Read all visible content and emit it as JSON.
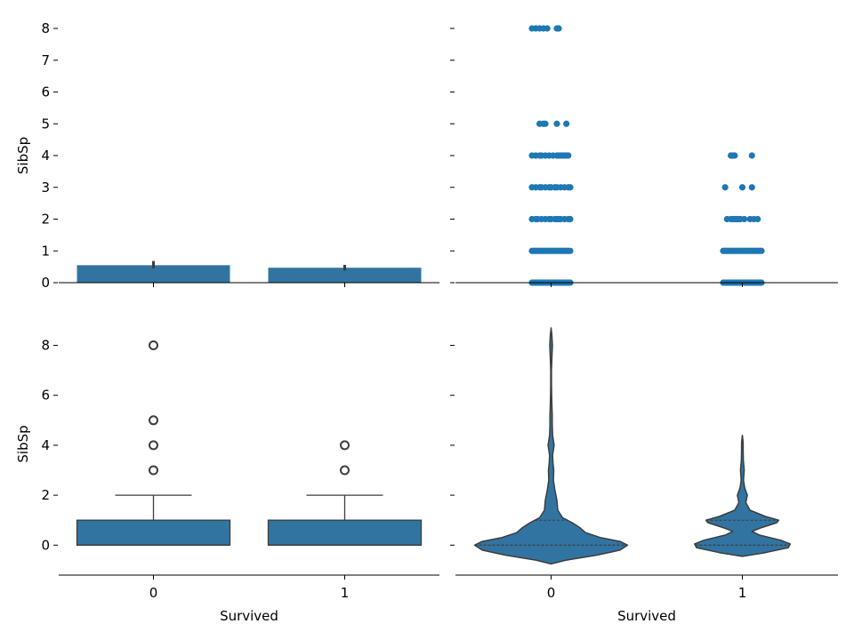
{
  "theme": {
    "fill": "#3274a1",
    "strip": "#1f77b4",
    "edge": "#3d3d3d",
    "outlier": "#3d3d3d",
    "axis": "#000000"
  },
  "chart_data": [
    {
      "type": "bar",
      "title": "",
      "xlabel": "",
      "ylabel": "SibSp",
      "categories": [
        "0",
        "1"
      ],
      "values": [
        0.55,
        0.47
      ],
      "ci": [
        [
          0.45,
          0.68
        ],
        [
          0.38,
          0.56
        ]
      ],
      "ylim": [
        0,
        8
      ],
      "yticks": [
        0,
        1,
        2,
        3,
        4,
        5,
        6,
        7,
        8
      ],
      "grid": false
    },
    {
      "type": "scatter",
      "subtype": "strip",
      "title": "",
      "xlabel": "",
      "ylabel": "",
      "categories": [
        "0",
        "1"
      ],
      "series": [
        {
          "points": [
            {
              "y": 8,
              "offsets": [
                -0.1,
                -0.08,
                -0.06,
                -0.04,
                -0.02,
                0.03,
                0.04
              ]
            },
            {
              "y": 5,
              "offsets": [
                -0.06,
                -0.04,
                -0.03,
                0.03,
                0.08
              ]
            },
            {
              "y": 4,
              "offsets": [
                -0.1,
                -0.08,
                -0.06,
                -0.05,
                -0.03,
                -0.01,
                0.01,
                0.03,
                0.04,
                0.05,
                0.06,
                0.07,
                0.08,
                0.09
              ]
            },
            {
              "y": 3,
              "offsets": [
                -0.1,
                -0.08,
                -0.06,
                -0.05,
                -0.03,
                -0.01,
                0.0,
                0.02,
                0.03,
                0.05,
                0.07,
                0.09,
                0.1
              ]
            },
            {
              "y": 2,
              "offsets": [
                -0.1,
                -0.08,
                -0.07,
                -0.05,
                -0.03,
                -0.01,
                0.0,
                0.02,
                0.03,
                0.04,
                0.05,
                0.07,
                0.09,
                0.1
              ]
            },
            {
              "y": 1,
              "offsets": [
                -0.1,
                -0.09,
                -0.08,
                -0.07,
                -0.06,
                -0.05,
                -0.04,
                -0.03,
                -0.02,
                -0.01,
                0.0,
                0.01,
                0.02,
                0.03,
                0.04,
                0.05,
                0.06,
                0.07,
                0.08,
                0.09,
                0.1
              ]
            },
            {
              "y": 0,
              "offsets": [
                -0.1,
                -0.09,
                -0.08,
                -0.07,
                -0.06,
                -0.05,
                -0.04,
                -0.03,
                -0.02,
                -0.01,
                0.0,
                0.01,
                0.02,
                0.03,
                0.04,
                0.05,
                0.06,
                0.07,
                0.08,
                0.09,
                0.1
              ]
            }
          ]
        },
        {
          "points": [
            {
              "y": 4,
              "offsets": [
                -0.06,
                -0.05,
                -0.04,
                0.05
              ]
            },
            {
              "y": 3,
              "offsets": [
                -0.09,
                0.0,
                0.05
              ]
            },
            {
              "y": 2,
              "offsets": [
                -0.08,
                -0.06,
                -0.05,
                -0.04,
                -0.03,
                -0.02,
                -0.01,
                0.01,
                0.04,
                0.06,
                0.08
              ]
            },
            {
              "y": 1,
              "offsets": [
                -0.1,
                -0.09,
                -0.08,
                -0.07,
                -0.06,
                -0.05,
                -0.04,
                -0.03,
                -0.02,
                -0.01,
                0.0,
                0.01,
                0.02,
                0.03,
                0.04,
                0.05,
                0.06,
                0.07,
                0.08,
                0.09,
                0.1
              ]
            },
            {
              "y": 0,
              "offsets": [
                -0.1,
                -0.09,
                -0.08,
                -0.07,
                -0.06,
                -0.05,
                -0.04,
                -0.03,
                -0.02,
                -0.01,
                0.0,
                0.01,
                0.02,
                0.03,
                0.04,
                0.05,
                0.06,
                0.07,
                0.08,
                0.09,
                0.1
              ]
            }
          ]
        }
      ],
      "ylim": [
        0,
        8
      ],
      "grid": false
    },
    {
      "type": "box",
      "title": "",
      "xlabel": "Survived",
      "ylabel": "SibSp",
      "categories": [
        "0",
        "1"
      ],
      "boxes": [
        {
          "q1": 0,
          "median": 0,
          "q3": 1,
          "whisker_low": 0,
          "whisker_high": 2,
          "outliers": [
            3,
            4,
            5,
            8
          ]
        },
        {
          "q1": 0,
          "median": 0,
          "q3": 1,
          "whisker_low": 0,
          "whisker_high": 2,
          "outliers": [
            3,
            4
          ]
        }
      ],
      "ylim": [
        -1.2,
        9.3
      ],
      "yticks": [
        0,
        2,
        4,
        6,
        8
      ],
      "grid": false
    },
    {
      "type": "violin",
      "title": "",
      "xlabel": "Survived",
      "ylabel": "",
      "categories": [
        "0",
        "1"
      ],
      "violins": [
        {
          "profile": [
            [
              -0.75,
              0.0
            ],
            [
              -0.6,
              0.08
            ],
            [
              -0.4,
              0.24
            ],
            [
              -0.2,
              0.36
            ],
            [
              0.0,
              0.4
            ],
            [
              0.15,
              0.36
            ],
            [
              0.3,
              0.26
            ],
            [
              0.5,
              0.18
            ],
            [
              0.7,
              0.15
            ],
            [
              0.9,
              0.11
            ],
            [
              1.1,
              0.06
            ],
            [
              1.4,
              0.035
            ],
            [
              1.8,
              0.03
            ],
            [
              2.2,
              0.02
            ],
            [
              2.6,
              0.012
            ],
            [
              3.0,
              0.014
            ],
            [
              3.3,
              0.01
            ],
            [
              3.6,
              0.008
            ],
            [
              4.0,
              0.016
            ],
            [
              4.4,
              0.008
            ],
            [
              4.8,
              0.006
            ],
            [
              5.2,
              0.006
            ],
            [
              5.6,
              0.004
            ],
            [
              6.0,
              0.003
            ],
            [
              6.5,
              0.002
            ],
            [
              7.0,
              0.002
            ],
            [
              7.5,
              0.004
            ],
            [
              8.0,
              0.007
            ],
            [
              8.4,
              0.004
            ],
            [
              8.7,
              0.0
            ]
          ],
          "quartiles": [
            0,
            0,
            1
          ]
        },
        {
          "profile": [
            [
              -0.45,
              0.0
            ],
            [
              -0.3,
              0.12
            ],
            [
              -0.1,
              0.24
            ],
            [
              0.05,
              0.25
            ],
            [
              0.2,
              0.2
            ],
            [
              0.4,
              0.09
            ],
            [
              0.55,
              0.05
            ],
            [
              0.7,
              0.1
            ],
            [
              0.9,
              0.18
            ],
            [
              1.0,
              0.19
            ],
            [
              1.15,
              0.12
            ],
            [
              1.4,
              0.04
            ],
            [
              1.7,
              0.018
            ],
            [
              2.0,
              0.026
            ],
            [
              2.3,
              0.012
            ],
            [
              2.6,
              0.006
            ],
            [
              3.0,
              0.01
            ],
            [
              3.4,
              0.005
            ],
            [
              3.8,
              0.004
            ],
            [
              4.1,
              0.004
            ],
            [
              4.4,
              0.0
            ]
          ],
          "quartiles": [
            0,
            0,
            1
          ]
        }
      ],
      "ylim": [
        -1.2,
        9.3
      ],
      "grid": false
    }
  ]
}
